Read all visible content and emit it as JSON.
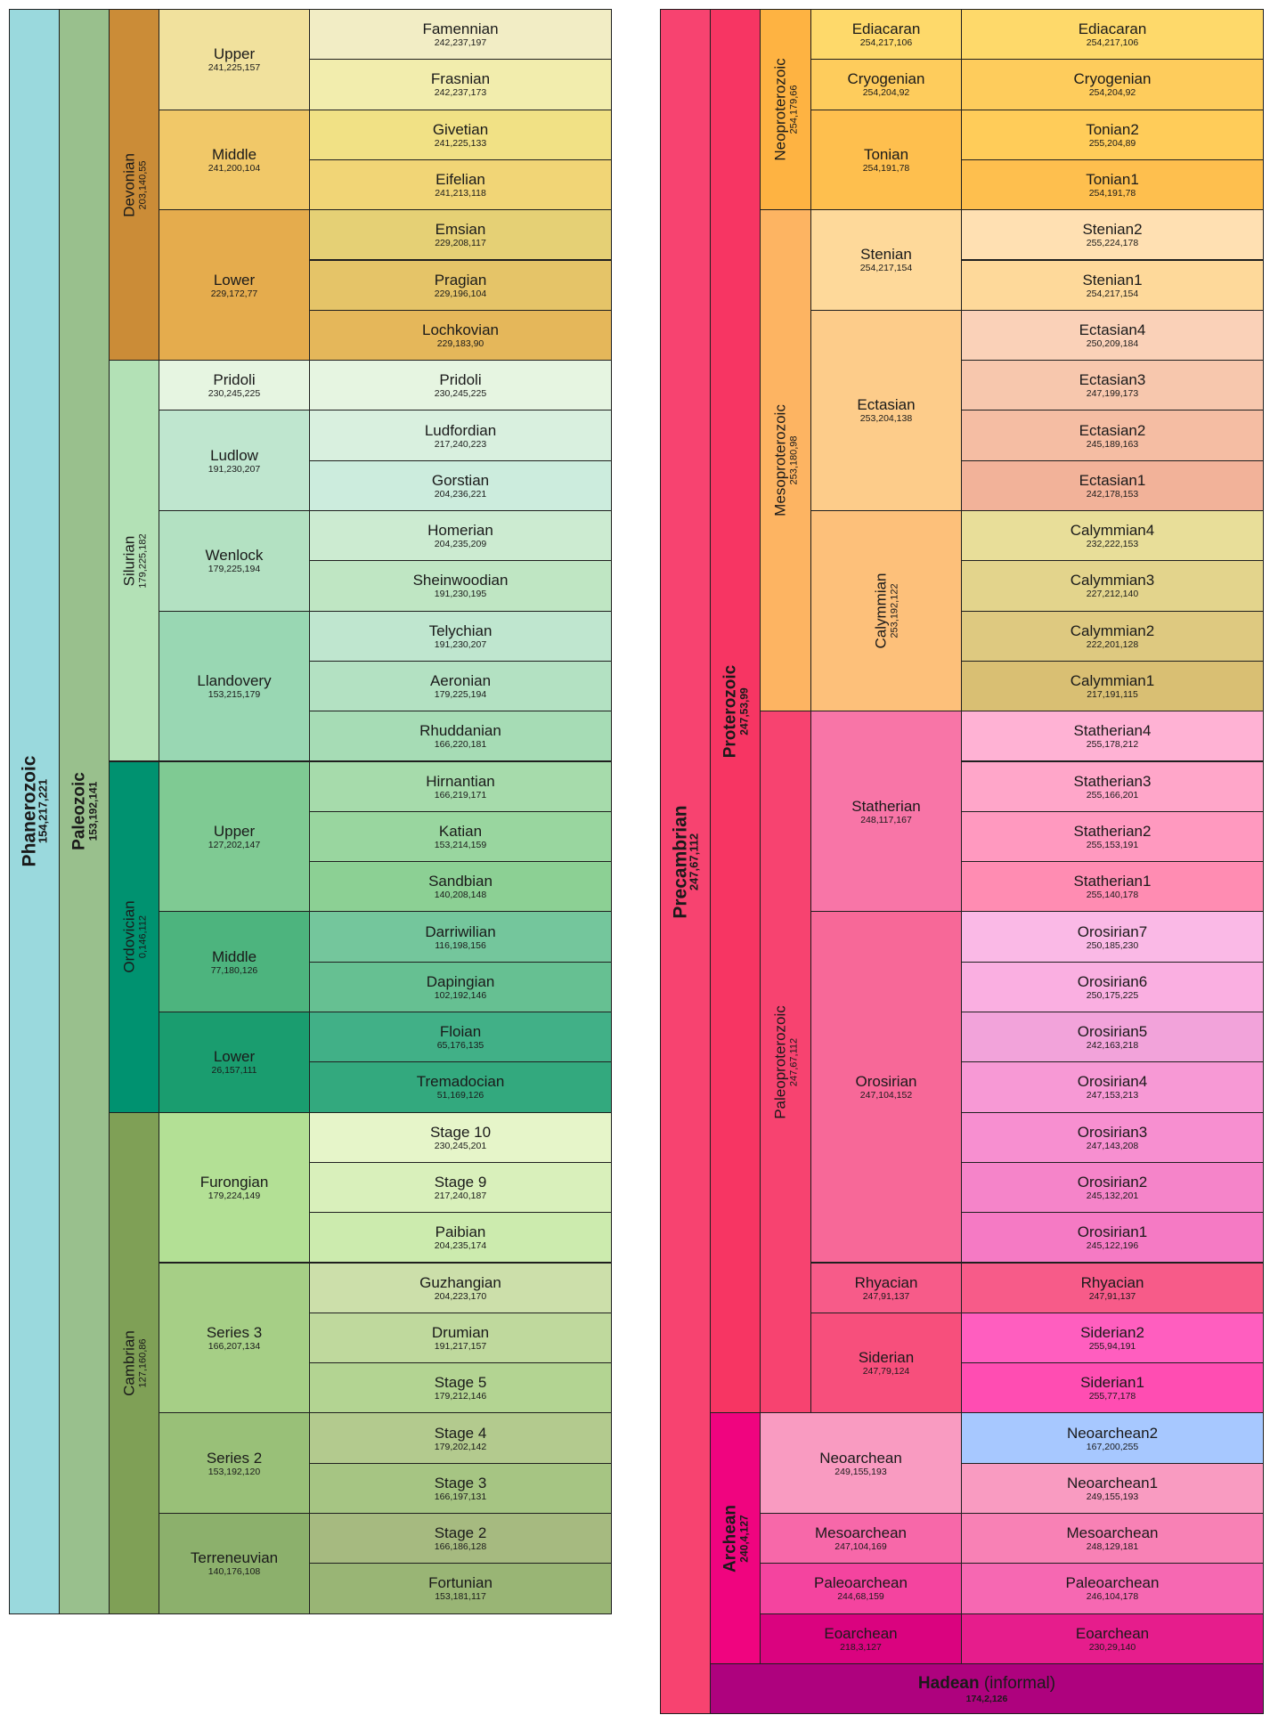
{
  "colors": {
    "border": "#1f1f1f",
    "text": "#1a1a1a"
  },
  "phanerozoic": {
    "eon": {
      "name": "Phanerozoic",
      "code": "154,217,221",
      "color": "#9ad9dd"
    },
    "era": {
      "name": "Paleozoic",
      "code": "153,192,141",
      "color": "#99c08d"
    },
    "systems": [
      {
        "name": "Devonian",
        "code": "203,140,55",
        "color": "#cb8c37",
        "series": [
          {
            "name": "Upper",
            "code": "241,225,157",
            "color": "#f1e19d",
            "stages": [
              {
                "name": "Famennian",
                "code": "242,237,197",
                "color": "#f2edc5"
              },
              {
                "name": "Frasnian",
                "code": "242,237,173",
                "color": "#f2edad"
              }
            ]
          },
          {
            "name": "Middle",
            "code": "241,200,104",
            "color": "#f1c868",
            "stages": [
              {
                "name": "Givetian",
                "code": "241,225,133",
                "color": "#f1e185"
              },
              {
                "name": "Eifelian",
                "code": "241,213,118",
                "color": "#f1d576"
              }
            ]
          },
          {
            "name": "Lower",
            "code": "229,172,77",
            "color": "#e5ac4d",
            "stages": [
              {
                "name": "Emsian",
                "code": "229,208,117",
                "color": "#e5d075"
              },
              {
                "name": "Pragian",
                "code": "229,196,104",
                "color": "#e5c468"
              },
              {
                "name": "Lochkovian",
                "code": "229,183,90",
                "color": "#e5b75a"
              }
            ]
          }
        ]
      },
      {
        "name": "Silurian",
        "code": "179,225,182",
        "color": "#b3e1b6",
        "series": [
          {
            "name": "Pridoli",
            "code": "230,245,225",
            "color": "#e6f5e1",
            "stages": [
              {
                "name": "Pridoli",
                "code": "230,245,225",
                "color": "#e6f5e1"
              }
            ]
          },
          {
            "name": "Ludlow",
            "code": "191,230,207",
            "color": "#bfe6cf",
            "stages": [
              {
                "name": "Ludfordian",
                "code": "217,240,223",
                "color": "#d9f0df"
              },
              {
                "name": "Gorstian",
                "code": "204,236,221",
                "color": "#ccecdd"
              }
            ]
          },
          {
            "name": "Wenlock",
            "code": "179,225,194",
            "color": "#b3e1c2",
            "stages": [
              {
                "name": "Homerian",
                "code": "204,235,209",
                "color": "#ccebd1"
              },
              {
                "name": "Sheinwoodian",
                "code": "191,230,195",
                "color": "#bfe6c3"
              }
            ]
          },
          {
            "name": "Llandovery",
            "code": "153,215,179",
            "color": "#99d7b3",
            "stages": [
              {
                "name": "Telychian",
                "code": "191,230,207",
                "color": "#bfe6cf"
              },
              {
                "name": "Aeronian",
                "code": "179,225,194",
                "color": "#b3e1c2"
              },
              {
                "name": "Rhuddanian",
                "code": "166,220,181",
                "color": "#a6dcb5"
              }
            ]
          }
        ]
      },
      {
        "name": "Ordovician",
        "code": "0,146,112",
        "color": "#009270",
        "series": [
          {
            "name": "Upper",
            "code": "127,202,147",
            "color": "#7fca93",
            "stages": [
              {
                "name": "Hirnantian",
                "code": "166,219,171",
                "color": "#a6dbab"
              },
              {
                "name": "Katian",
                "code": "153,214,159",
                "color": "#99d69f"
              },
              {
                "name": "Sandbian",
                "code": "140,208,148",
                "color": "#8cd094"
              }
            ]
          },
          {
            "name": "Middle",
            "code": "77,180,126",
            "color": "#4db47e",
            "stages": [
              {
                "name": "Darriwilian",
                "code": "116,198,156",
                "color": "#74c69c"
              },
              {
                "name": "Dapingian",
                "code": "102,192,146",
                "color": "#66c092"
              }
            ]
          },
          {
            "name": "Lower",
            "code": "26,157,111",
            "color": "#1a9d6f",
            "stages": [
              {
                "name": "Floian",
                "code": "65,176,135",
                "color": "#41b087"
              },
              {
                "name": "Tremadocian",
                "code": "51,169,126",
                "color": "#33a97e"
              }
            ]
          }
        ]
      },
      {
        "name": "Cambrian",
        "code": "127,160,86",
        "color": "#7fa056",
        "series": [
          {
            "name": "Furongian",
            "code": "179,224,149",
            "color": "#b3e095",
            "stages": [
              {
                "name": "Stage 10",
                "code": "230,245,201",
                "color": "#e6f5c9"
              },
              {
                "name": "Stage 9",
                "code": "217,240,187",
                "color": "#d9f0bb"
              },
              {
                "name": "Paibian",
                "code": "204,235,174",
                "color": "#ccebae"
              }
            ]
          },
          {
            "name": "Series 3",
            "code": "166,207,134",
            "color": "#a6cf86",
            "stages": [
              {
                "name": "Guzhangian",
                "code": "204,223,170",
                "color": "#ccdfaa"
              },
              {
                "name": "Drumian",
                "code": "191,217,157",
                "color": "#bfd99d"
              },
              {
                "name": "Stage 5",
                "code": "179,212,146",
                "color": "#b3d492"
              }
            ]
          },
          {
            "name": "Series 2",
            "code": "153,192,120",
            "color": "#99c078",
            "stages": [
              {
                "name": "Stage 4",
                "code": "179,202,142",
                "color": "#b3ca8e"
              },
              {
                "name": "Stage 3",
                "code": "166,197,131",
                "color": "#a6c583"
              }
            ]
          },
          {
            "name": "Terreneuvian",
            "code": "140,176,108",
            "color": "#8cb06c",
            "stages": [
              {
                "name": "Stage 2",
                "code": "166,186,128",
                "color": "#a6ba80"
              },
              {
                "name": "Fortunian",
                "code": "153,181,117",
                "color": "#99b575"
              }
            ]
          }
        ]
      }
    ]
  },
  "precambrian": {
    "supereon": {
      "name": "Precambrian",
      "code": "247,67,112",
      "color": "#f74370"
    },
    "proterozoic": {
      "name": "Proterozoic",
      "code": "247,53,99",
      "color": "#f73563",
      "eras": [
        {
          "name": "Neoproterozoic",
          "code": "254,179,66",
          "color": "#feb342",
          "periods": [
            {
              "name": "Ediacaran",
              "code": "254,217,106",
              "color": "#fed96a",
              "stages": [
                {
                  "name": "Ediacaran",
                  "code": "254,217,106",
                  "color": "#fed96a"
                }
              ]
            },
            {
              "name": "Cryogenian",
              "code": "254,204,92",
              "color": "#fecc5c",
              "stages": [
                {
                  "name": "Cryogenian",
                  "code": "254,204,92",
                  "color": "#fecc5c"
                }
              ]
            },
            {
              "name": "Tonian",
              "code": "254,191,78",
              "color": "#febf4e",
              "stages": [
                {
                  "name": "Tonian2",
                  "code": "255,204,89",
                  "color": "#ffcc59"
                },
                {
                  "name": "Tonian1",
                  "code": "254,191,78",
                  "color": "#febf4e"
                }
              ]
            }
          ]
        },
        {
          "name": "Mesoproterozoic",
          "code": "253,180,98",
          "color": "#fdb462",
          "periods": [
            {
              "name": "Stenian",
              "code": "254,217,154",
              "color": "#fed99a",
              "stages": [
                {
                  "name": "Stenian2",
                  "code": "255,224,178",
                  "color": "#ffe0b2"
                },
                {
                  "name": "Stenian1",
                  "code": "254,217,154",
                  "color": "#fed99a"
                }
              ]
            },
            {
              "name": "Ectasian",
              "code": "253,204,138",
              "color": "#fdcc8a",
              "stages": [
                {
                  "name": "Ectasian4",
                  "code": "250,209,184",
                  "color": "#fad1b8"
                },
                {
                  "name": "Ectasian3",
                  "code": "247,199,173",
                  "color": "#f7c7ad"
                },
                {
                  "name": "Ectasian2",
                  "code": "245,189,163",
                  "color": "#f5bda3"
                },
                {
                  "name": "Ectasian1",
                  "code": "242,178,153",
                  "color": "#f2b299"
                }
              ]
            },
            {
              "name": "Calymmian",
              "code": "253,192,122",
              "color": "#fdc07a",
              "stages": [
                {
                  "name": "Calymmian4",
                  "code": "232,222,153",
                  "color": "#e8de99"
                },
                {
                  "name": "Calymmian3",
                  "code": "227,212,140",
                  "color": "#e3d48c"
                },
                {
                  "name": "Calymmian2",
                  "code": "222,201,128",
                  "color": "#dec980"
                },
                {
                  "name": "Calymmian1",
                  "code": "217,191,115",
                  "color": "#d9bf73"
                }
              ]
            }
          ]
        },
        {
          "name": "Paleoproterozoic",
          "code": "247,67,112",
          "color": "#f74370",
          "periods": [
            {
              "name": "Statherian",
              "code": "248,117,167",
              "color": "#f875a7",
              "stages": [
                {
                  "name": "Statherian4",
                  "code": "255,178,212",
                  "color": "#ffb2d4"
                },
                {
                  "name": "Statherian3",
                  "code": "255,166,201",
                  "color": "#ffa6c9"
                },
                {
                  "name": "Statherian2",
                  "code": "255,153,191",
                  "color": "#ff99bf"
                },
                {
                  "name": "Statherian1",
                  "code": "255,140,178",
                  "color": "#ff8cb2"
                }
              ]
            },
            {
              "name": "Orosirian",
              "code": "247,104,152",
              "color": "#f76898",
              "stages": [
                {
                  "name": "Orosirian7",
                  "code": "250,185,230",
                  "color": "#fab9e6"
                },
                {
                  "name": "Orosirian6",
                  "code": "250,175,225",
                  "color": "#faafe1"
                },
                {
                  "name": "Orosirian5",
                  "code": "242,163,218",
                  "color": "#f2a3da"
                },
                {
                  "name": "Orosirian4",
                  "code": "247,153,213",
                  "color": "#f799d5"
                },
                {
                  "name": "Orosirian3",
                  "code": "247,143,208",
                  "color": "#f78fd0"
                },
                {
                  "name": "Orosirian2",
                  "code": "245,132,201",
                  "color": "#f584c9"
                },
                {
                  "name": "Orosirian1",
                  "code": "245,122,196",
                  "color": "#f57ac4"
                }
              ]
            },
            {
              "name": "Rhyacian",
              "code": "247,91,137",
              "color": "#f75b89",
              "stages": [
                {
                  "name": "Rhyacian",
                  "code": "247,91,137",
                  "color": "#f75b89"
                }
              ]
            },
            {
              "name": "Siderian",
              "code": "247,79,124",
              "color": "#f74f7c",
              "stages": [
                {
                  "name": "Siderian2",
                  "code": "255,94,191",
                  "color": "#ff5ebf"
                },
                {
                  "name": "Siderian1",
                  "code": "255,77,178",
                  "color": "#ff4db2"
                }
              ]
            }
          ]
        }
      ]
    },
    "archean": {
      "name": "Archean",
      "code": "240,4,127",
      "color": "#f0047f",
      "eras": [
        {
          "name": "Neoarchean",
          "code": "249,155,193",
          "color": "#f99bc1",
          "stages": [
            {
              "name": "Neoarchean2",
              "code": "167,200,255",
              "color": "#a7c8ff"
            },
            {
              "name": "Neoarchean1",
              "code": "249,155,193",
              "color": "#f99bc1"
            }
          ]
        },
        {
          "name": "Mesoarchean",
          "code": "247,104,169",
          "color": "#f768a9",
          "stages": [
            {
              "name": "Mesoarchean",
              "code": "248,129,181",
              "color": "#f881b5"
            }
          ]
        },
        {
          "name": "Paleoarchean",
          "code": "244,68,159",
          "color": "#f4449f",
          "stages": [
            {
              "name": "Paleoarchean",
              "code": "246,104,178",
              "color": "#f668b2"
            }
          ]
        },
        {
          "name": "Eoarchean",
          "code": "218,3,127",
          "color": "#da037f",
          "stages": [
            {
              "name": "Eoarchean",
              "code": "230,29,140",
              "color": "#e61d8c"
            }
          ]
        }
      ]
    },
    "hadean": {
      "name": "Hadean",
      "qualifier": "(informal)",
      "code": "174,2,126",
      "color": "#ae027e"
    }
  }
}
